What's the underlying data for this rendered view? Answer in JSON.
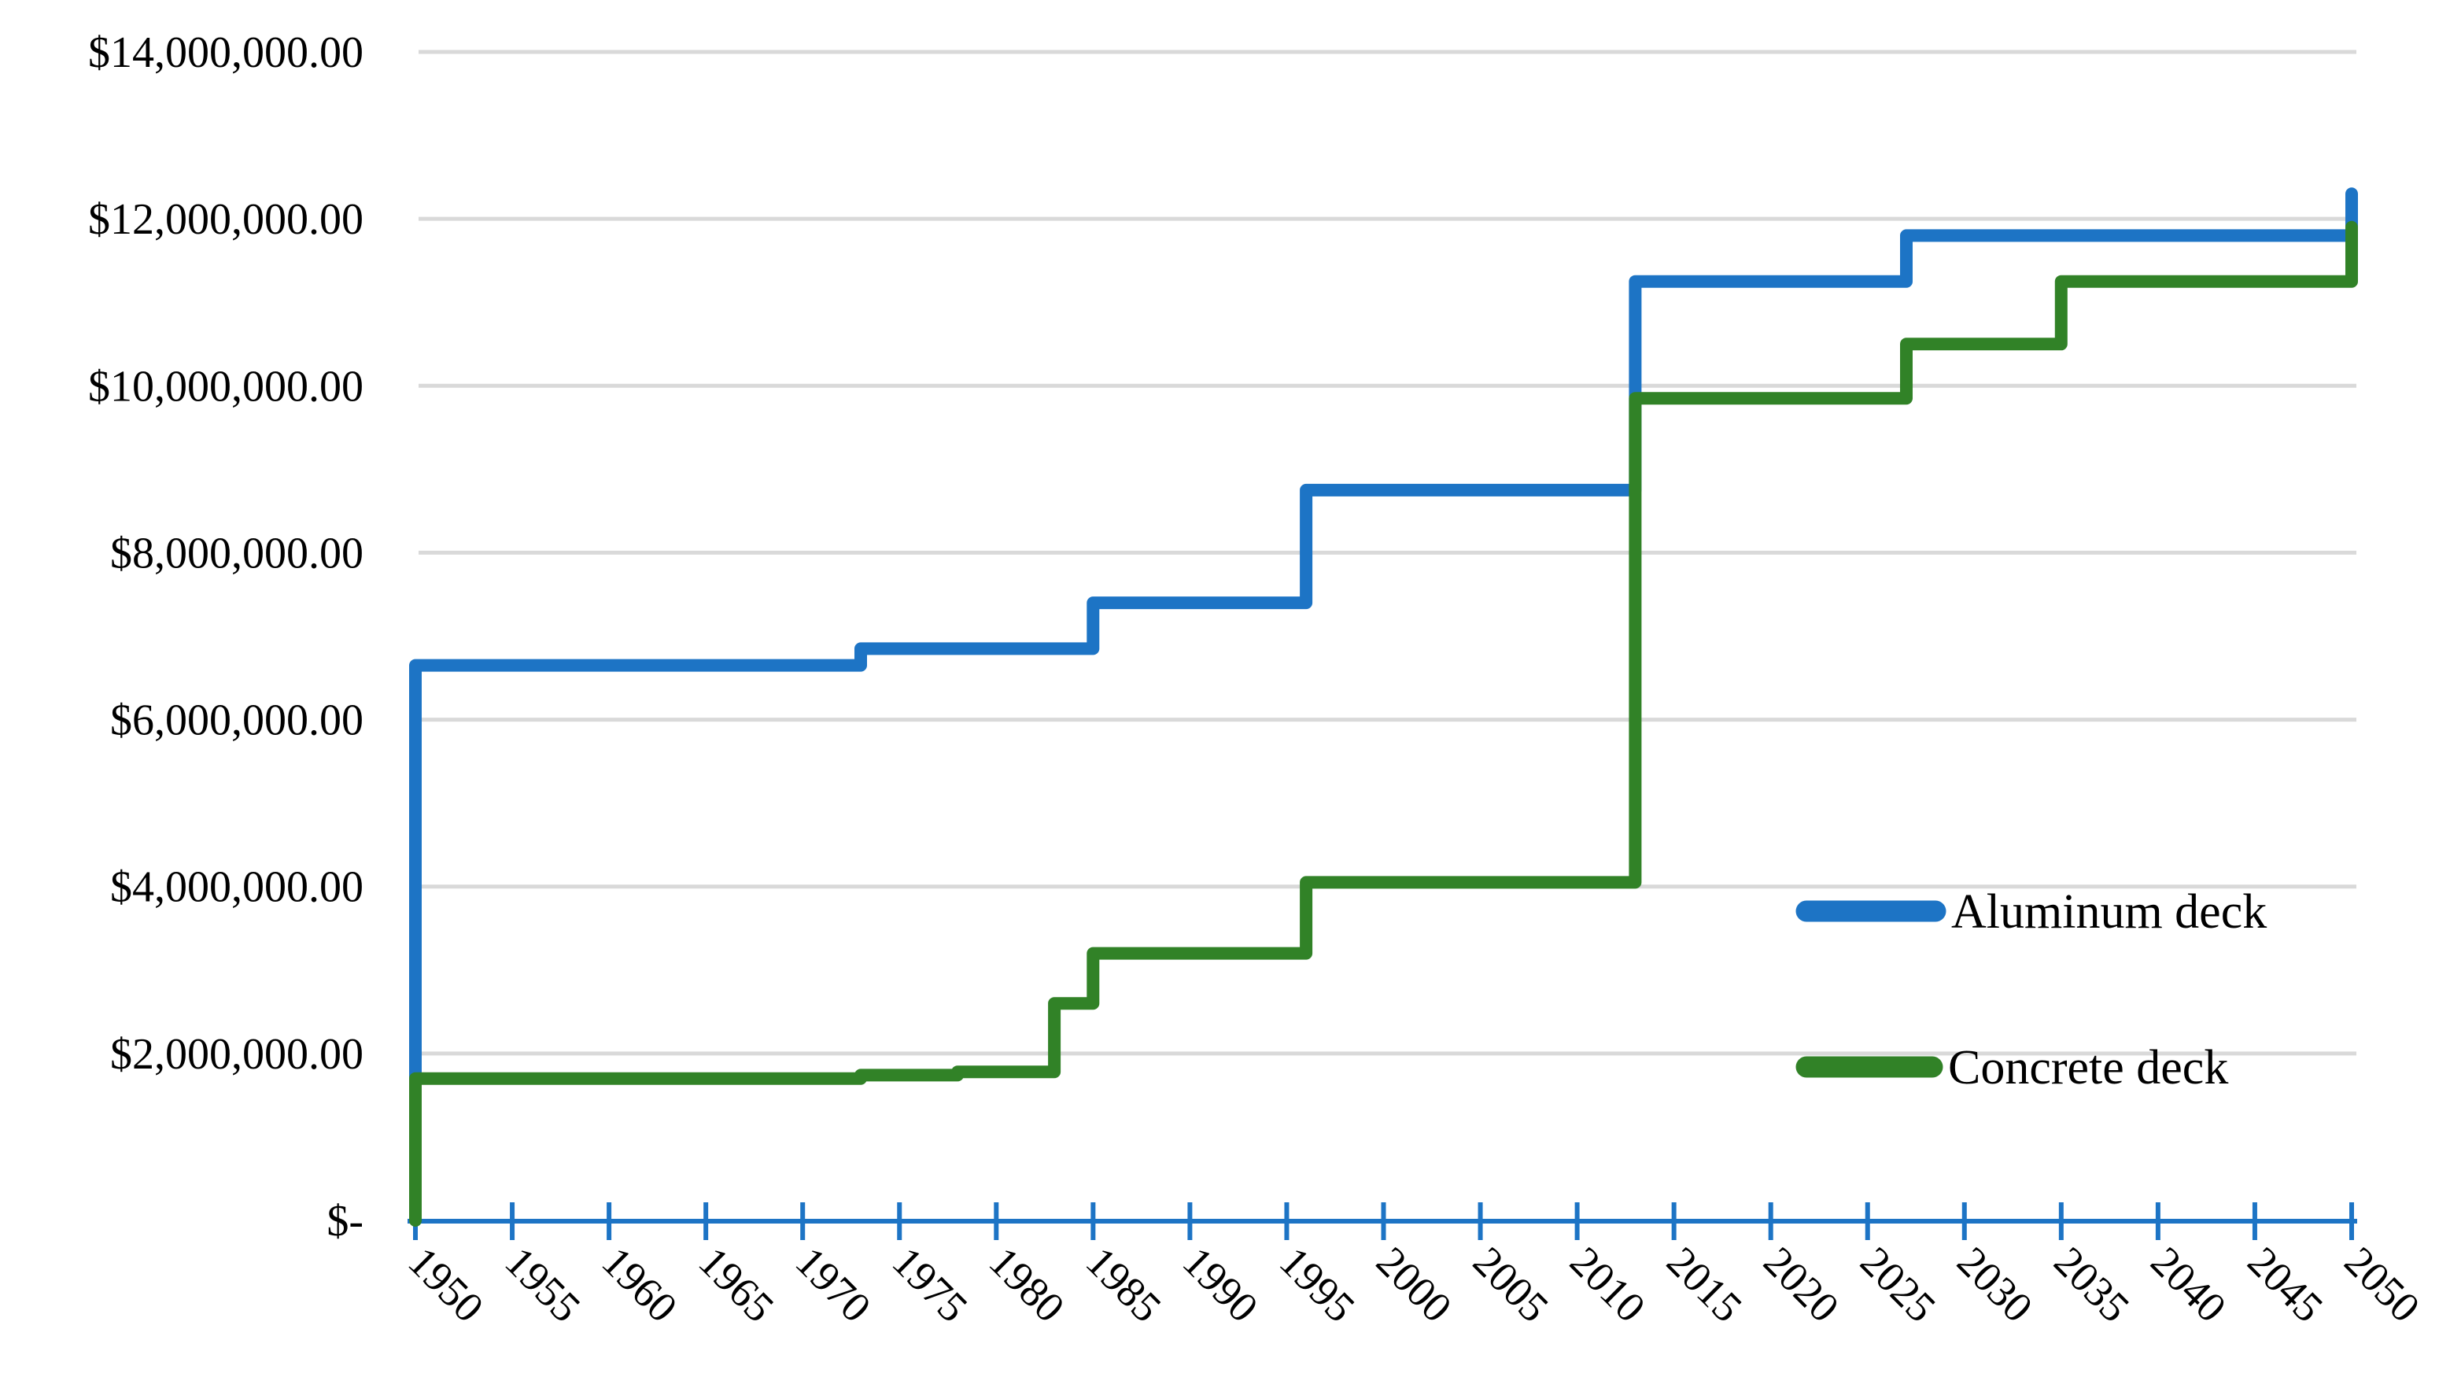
{
  "chart_data": {
    "type": "line",
    "subtype": "step",
    "title": "",
    "xlabel": "",
    "ylabel": "",
    "xlim": [
      1950,
      2050
    ],
    "ylim": [
      0,
      14000000
    ],
    "grid": "horizontal-only",
    "gridline_color": "#d9d9d9",
    "axis_line_color": "#1d74c5",
    "x_tick_years": [
      1950,
      1955,
      1960,
      1965,
      1970,
      1975,
      1980,
      1985,
      1990,
      1995,
      2000,
      2005,
      2010,
      2015,
      2020,
      2025,
      2030,
      2035,
      2040,
      2045,
      2050
    ],
    "x_tick_labels": [
      "1950",
      "1955",
      "1960",
      "1965",
      "1970",
      "1975",
      "1980",
      "1985",
      "1990",
      "1995",
      "2000",
      "2005",
      "2010",
      "2015",
      "2020",
      "2025",
      "2030",
      "2035",
      "2040",
      "2045",
      "2050"
    ],
    "y_tick_values": [
      0,
      2000000,
      4000000,
      6000000,
      8000000,
      10000000,
      12000000,
      14000000
    ],
    "y_tick_labels": [
      "$-",
      "$2,000,000.00",
      "$4,000,000.00",
      "$6,000,000.00",
      "$8,000,000.00",
      "$10,000,000.00",
      "$12,000,000.00",
      "$14,000,000.00"
    ],
    "x_label_rotation_deg": 45,
    "legend_position": "inside-right",
    "series": [
      {
        "name": "Aluminum deck",
        "color": "#1d74c5",
        "points": [
          [
            1950,
            0
          ],
          [
            1950,
            6650000
          ],
          [
            1973,
            6650000
          ],
          [
            1973,
            6850000
          ],
          [
            1985,
            6850000
          ],
          [
            1985,
            7400000
          ],
          [
            1996,
            7400000
          ],
          [
            1996,
            8750000
          ],
          [
            2013,
            8750000
          ],
          [
            2013,
            11250000
          ],
          [
            2027,
            11250000
          ],
          [
            2027,
            11800000
          ],
          [
            2050,
            11800000
          ],
          [
            2050,
            12300000
          ]
        ]
      },
      {
        "name": "Concrete deck",
        "color": "#318227",
        "points": [
          [
            1950,
            0
          ],
          [
            1950,
            1700000
          ],
          [
            1973,
            1700000
          ],
          [
            1973,
            1740000
          ],
          [
            1978,
            1740000
          ],
          [
            1978,
            1780000
          ],
          [
            1983,
            1780000
          ],
          [
            1983,
            2600000
          ],
          [
            1985,
            2600000
          ],
          [
            1985,
            3200000
          ],
          [
            1996,
            3200000
          ],
          [
            1996,
            4050000
          ],
          [
            2013,
            4050000
          ],
          [
            2013,
            9850000
          ],
          [
            2027,
            9850000
          ],
          [
            2027,
            10500000
          ],
          [
            2035,
            10500000
          ],
          [
            2035,
            11250000
          ],
          [
            2050,
            11250000
          ],
          [
            2050,
            11900000
          ]
        ]
      }
    ]
  },
  "legend": {
    "items": [
      {
        "label": "Aluminum deck",
        "color": "#1d74c5"
      },
      {
        "label": "Concrete deck",
        "color": "#318227"
      }
    ]
  }
}
